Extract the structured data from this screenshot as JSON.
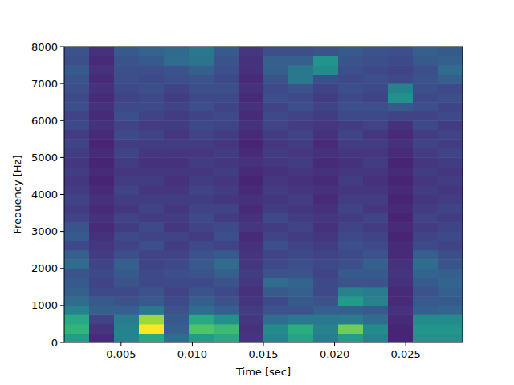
{
  "chart_data": {
    "type": "heatmap",
    "color": "viridis",
    "x_label": "Time [sec]",
    "y_label": "Frequency [Hz]",
    "xlim": [
      0.001,
      0.029
    ],
    "ylim": [
      0,
      8000
    ],
    "xticks": [
      {
        "value": 0.005,
        "label": "0.005"
      },
      {
        "value": 0.01,
        "label": "0.010"
      },
      {
        "value": 0.015,
        "label": "0.015"
      },
      {
        "value": 0.02,
        "label": "0.020"
      },
      {
        "value": 0.025,
        "label": "0.025"
      }
    ],
    "yticks": [
      0,
      1000,
      2000,
      3000,
      4000,
      5000,
      6000,
      7000,
      8000
    ],
    "zlim": [
      0,
      100
    ],
    "x_edges": [
      0.001,
      0.00275,
      0.0045,
      0.00625,
      0.008,
      0.00975,
      0.0115,
      0.01325,
      0.015,
      0.01675,
      0.0185,
      0.02025,
      0.022,
      0.02375,
      0.0255,
      0.02725,
      0.029
    ],
    "y_edges": [
      0,
      250,
      500,
      750,
      1000,
      1250,
      1500,
      1750,
      2000,
      2250,
      2500,
      2750,
      3000,
      3250,
      3500,
      3750,
      4000,
      4250,
      4500,
      4750,
      5000,
      5250,
      5500,
      5750,
      6000,
      6250,
      6500,
      6750,
      7000,
      7250,
      7500,
      7750,
      8000
    ],
    "cells": [
      [
        55,
        12,
        45,
        60,
        35,
        55,
        60,
        15,
        45,
        58,
        42,
        55,
        45,
        10,
        50,
        50
      ],
      [
        65,
        15,
        45,
        100,
        30,
        72,
        68,
        14,
        48,
        62,
        45,
        78,
        48,
        10,
        52,
        52
      ],
      [
        60,
        20,
        42,
        85,
        28,
        60,
        50,
        16,
        35,
        40,
        40,
        42,
        35,
        12,
        48,
        48
      ],
      [
        45,
        30,
        30,
        40,
        25,
        35,
        30,
        18,
        25,
        25,
        30,
        30,
        28,
        14,
        30,
        32
      ],
      [
        35,
        28,
        25,
        28,
        22,
        30,
        25,
        15,
        22,
        28,
        25,
        55,
        45,
        12,
        28,
        28
      ],
      [
        30,
        22,
        22,
        25,
        20,
        25,
        22,
        14,
        28,
        30,
        22,
        45,
        42,
        12,
        25,
        30
      ],
      [
        28,
        20,
        25,
        22,
        22,
        22,
        25,
        16,
        35,
        32,
        22,
        25,
        25,
        14,
        28,
        32
      ],
      [
        25,
        22,
        28,
        22,
        24,
        25,
        30,
        18,
        25,
        25,
        20,
        28,
        28,
        15,
        32,
        30
      ],
      [
        35,
        20,
        30,
        20,
        22,
        28,
        35,
        16,
        22,
        24,
        22,
        24,
        30,
        14,
        35,
        26
      ],
      [
        30,
        18,
        24,
        20,
        20,
        25,
        28,
        15,
        20,
        22,
        20,
        22,
        26,
        12,
        30,
        24
      ],
      [
        22,
        16,
        20,
        24,
        18,
        22,
        20,
        14,
        24,
        20,
        18,
        24,
        22,
        12,
        22,
        20
      ],
      [
        28,
        14,
        22,
        20,
        20,
        18,
        24,
        12,
        20,
        18,
        16,
        22,
        20,
        10,
        20,
        22
      ],
      [
        26,
        12,
        18,
        22,
        16,
        20,
        22,
        16,
        18,
        20,
        14,
        20,
        18,
        12,
        18,
        20
      ],
      [
        20,
        14,
        20,
        18,
        18,
        22,
        18,
        14,
        22,
        18,
        16,
        18,
        20,
        10,
        20,
        18
      ],
      [
        18,
        12,
        16,
        20,
        16,
        20,
        20,
        12,
        18,
        16,
        14,
        20,
        16,
        12,
        18,
        20
      ],
      [
        20,
        14,
        18,
        18,
        18,
        18,
        16,
        14,
        16,
        18,
        12,
        18,
        18,
        10,
        16,
        18
      ],
      [
        18,
        12,
        20,
        16,
        16,
        20,
        18,
        12,
        18,
        16,
        14,
        16,
        16,
        12,
        18,
        16
      ],
      [
        16,
        10,
        18,
        18,
        14,
        18,
        16,
        10,
        16,
        14,
        12,
        18,
        14,
        10,
        16,
        18
      ],
      [
        18,
        12,
        16,
        16,
        16,
        16,
        18,
        12,
        14,
        16,
        14,
        16,
        16,
        12,
        18,
        16
      ],
      [
        16,
        10,
        18,
        14,
        14,
        18,
        16,
        14,
        16,
        18,
        12,
        14,
        18,
        10,
        16,
        18
      ],
      [
        18,
        12,
        20,
        16,
        16,
        16,
        18,
        12,
        18,
        16,
        14,
        16,
        16,
        12,
        18,
        20
      ],
      [
        20,
        10,
        18,
        18,
        18,
        18,
        16,
        10,
        16,
        18,
        12,
        18,
        18,
        14,
        20,
        18
      ],
      [
        18,
        12,
        22,
        20,
        16,
        20,
        18,
        12,
        18,
        20,
        14,
        20,
        16,
        12,
        18,
        20
      ],
      [
        22,
        14,
        20,
        18,
        18,
        22,
        20,
        14,
        20,
        18,
        16,
        18,
        20,
        14,
        22,
        18
      ],
      [
        20,
        12,
        24,
        20,
        18,
        20,
        22,
        12,
        22,
        20,
        18,
        22,
        22,
        20,
        20,
        22
      ],
      [
        24,
        14,
        22,
        22,
        20,
        24,
        20,
        14,
        20,
        24,
        20,
        24,
        24,
        28,
        24,
        20
      ],
      [
        22,
        12,
        20,
        22,
        18,
        22,
        22,
        12,
        24,
        22,
        18,
        22,
        20,
        50,
        22,
        24
      ],
      [
        24,
        14,
        22,
        24,
        20,
        24,
        24,
        14,
        22,
        26,
        20,
        24,
        22,
        45,
        24,
        22
      ],
      [
        26,
        12,
        24,
        22,
        24,
        26,
        22,
        12,
        26,
        40,
        24,
        22,
        24,
        22,
        26,
        30
      ],
      [
        28,
        14,
        24,
        24,
        26,
        30,
        24,
        14,
        30,
        40,
        48,
        24,
        22,
        20,
        24,
        35
      ],
      [
        24,
        12,
        26,
        28,
        35,
        38,
        26,
        14,
        30,
        30,
        52,
        26,
        24,
        22,
        28,
        30
      ],
      [
        26,
        14,
        28,
        32,
        34,
        40,
        28,
        16,
        24,
        24,
        26,
        28,
        26,
        24,
        30,
        28
      ]
    ]
  }
}
